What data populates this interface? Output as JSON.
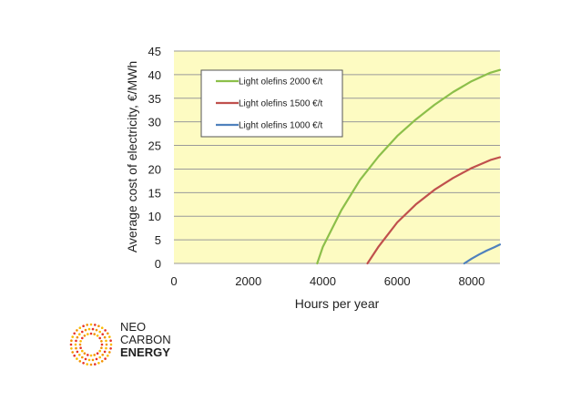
{
  "chart_data": {
    "type": "line",
    "title": "",
    "xlabel": "Hours per year",
    "ylabel": "Average  cost of electricity, €/MWh",
    "xlim": [
      0,
      8760
    ],
    "ylim": [
      0,
      45
    ],
    "xticks": [
      0,
      2000,
      4000,
      6000,
      8000
    ],
    "yticks": [
      0,
      5,
      10,
      15,
      20,
      25,
      30,
      35,
      40,
      45
    ],
    "grid": "horizontal",
    "legend_position": "top-left",
    "background": "#fdfbc2",
    "series": [
      {
        "name": "Light olefins 2000 €/t",
        "color": "#8cbf4a",
        "x": [
          3850,
          4000,
          4500,
          5000,
          5500,
          6000,
          6500,
          7000,
          7500,
          8000,
          8500,
          8760
        ],
        "y": [
          0,
          3.5,
          11.3,
          17.7,
          22.7,
          27.0,
          30.5,
          33.6,
          36.3,
          38.6,
          40.4,
          41.0
        ]
      },
      {
        "name": "Light olefins 1500 €/t",
        "color": "#c0504d",
        "x": [
          5200,
          5500,
          6000,
          6500,
          7000,
          7500,
          8000,
          8500,
          8760
        ],
        "y": [
          0,
          3.6,
          8.7,
          12.5,
          15.6,
          18.1,
          20.2,
          21.9,
          22.5
        ]
      },
      {
        "name": "Light olefins 1000 €/t",
        "color": "#4f81bd",
        "x": [
          7800,
          8000,
          8200,
          8400,
          8600,
          8760
        ],
        "y": [
          0,
          1.0,
          1.9,
          2.7,
          3.4,
          4.0
        ]
      }
    ]
  },
  "logo": {
    "line1": "NEO",
    "line2": "CARBON",
    "line3": "ENERGY",
    "colors": [
      "#e6332a",
      "#f39200",
      "#fbba00"
    ]
  }
}
